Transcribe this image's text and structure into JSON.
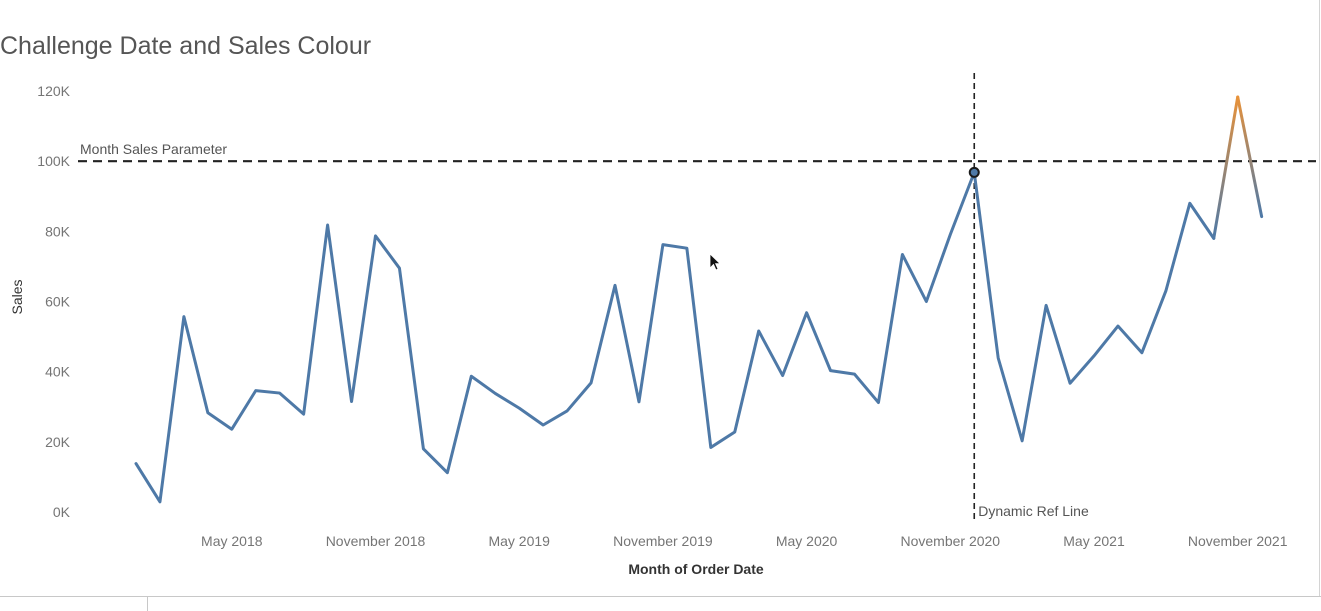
{
  "chart_data": {
    "type": "line",
    "title": "Challenge Date and Sales Colour",
    "xlabel": "Month of Order Date",
    "ylabel": "Sales",
    "ylim": [
      0,
      120000
    ],
    "y_ticks": [
      {
        "value": 0,
        "label": "0K"
      },
      {
        "value": 20000,
        "label": "20K"
      },
      {
        "value": 40000,
        "label": "40K"
      },
      {
        "value": 60000,
        "label": "60K"
      },
      {
        "value": 80000,
        "label": "80K"
      },
      {
        "value": 100000,
        "label": "100K"
      },
      {
        "value": 120000,
        "label": "120K"
      }
    ],
    "x_ticks": [
      {
        "index": 4,
        "label": "May 2018"
      },
      {
        "index": 10,
        "label": "November 2018"
      },
      {
        "index": 16,
        "label": "May 2019"
      },
      {
        "index": 22,
        "label": "November 2019"
      },
      {
        "index": 28,
        "label": "May 2020"
      },
      {
        "index": 34,
        "label": "November 2020"
      },
      {
        "index": 40,
        "label": "May 2021"
      },
      {
        "index": 46,
        "label": "November 2021"
      }
    ],
    "series": [
      {
        "months": [
          "2018-01",
          "2018-02",
          "2018-03",
          "2018-04",
          "2018-05",
          "2018-06",
          "2018-07",
          "2018-08",
          "2018-09",
          "2018-10",
          "2018-11",
          "2018-12",
          "2019-01",
          "2019-02",
          "2019-03",
          "2019-04",
          "2019-05",
          "2019-06",
          "2019-07",
          "2019-08",
          "2019-09",
          "2019-10",
          "2019-11",
          "2019-12",
          "2020-01",
          "2020-02",
          "2020-03",
          "2020-04",
          "2020-05",
          "2020-06",
          "2020-07",
          "2020-08",
          "2020-09",
          "2020-10",
          "2020-11",
          "2020-12",
          "2021-01",
          "2021-02",
          "2021-03",
          "2021-04",
          "2021-05",
          "2021-06",
          "2021-07",
          "2021-08",
          "2021-09",
          "2021-10",
          "2021-11",
          "2021-12"
        ],
        "values": [
          13800,
          2900,
          55700,
          28300,
          23600,
          34600,
          33900,
          27900,
          81800,
          31500,
          78700,
          69500,
          18000,
          11200,
          38700,
          33800,
          29600,
          24800,
          28800,
          36800,
          64600,
          31400,
          76200,
          75200,
          18400,
          22800,
          51600,
          38900,
          56800,
          40300,
          39300,
          31200,
          73400,
          60000,
          79100,
          96800,
          43900,
          20300,
          58900,
          36700,
          44500,
          53000,
          45400,
          63000,
          88000,
          78000,
          118300,
          84200
        ]
      }
    ],
    "reference_lines": [
      {
        "axis": "y",
        "value": 100000,
        "label": "Month Sales Parameter"
      },
      {
        "axis": "x",
        "index": 35,
        "label": "Dynamic Ref Line"
      }
    ],
    "highlight": {
      "index": 35,
      "above_threshold_color": "#E8923A"
    },
    "colors": {
      "line": "#4E79A7",
      "above": "#E8923A",
      "ref": "#222222",
      "marker_fill": "#4E79A7",
      "marker_stroke": "#1a1a1a"
    },
    "grid": false,
    "legend": "none"
  }
}
